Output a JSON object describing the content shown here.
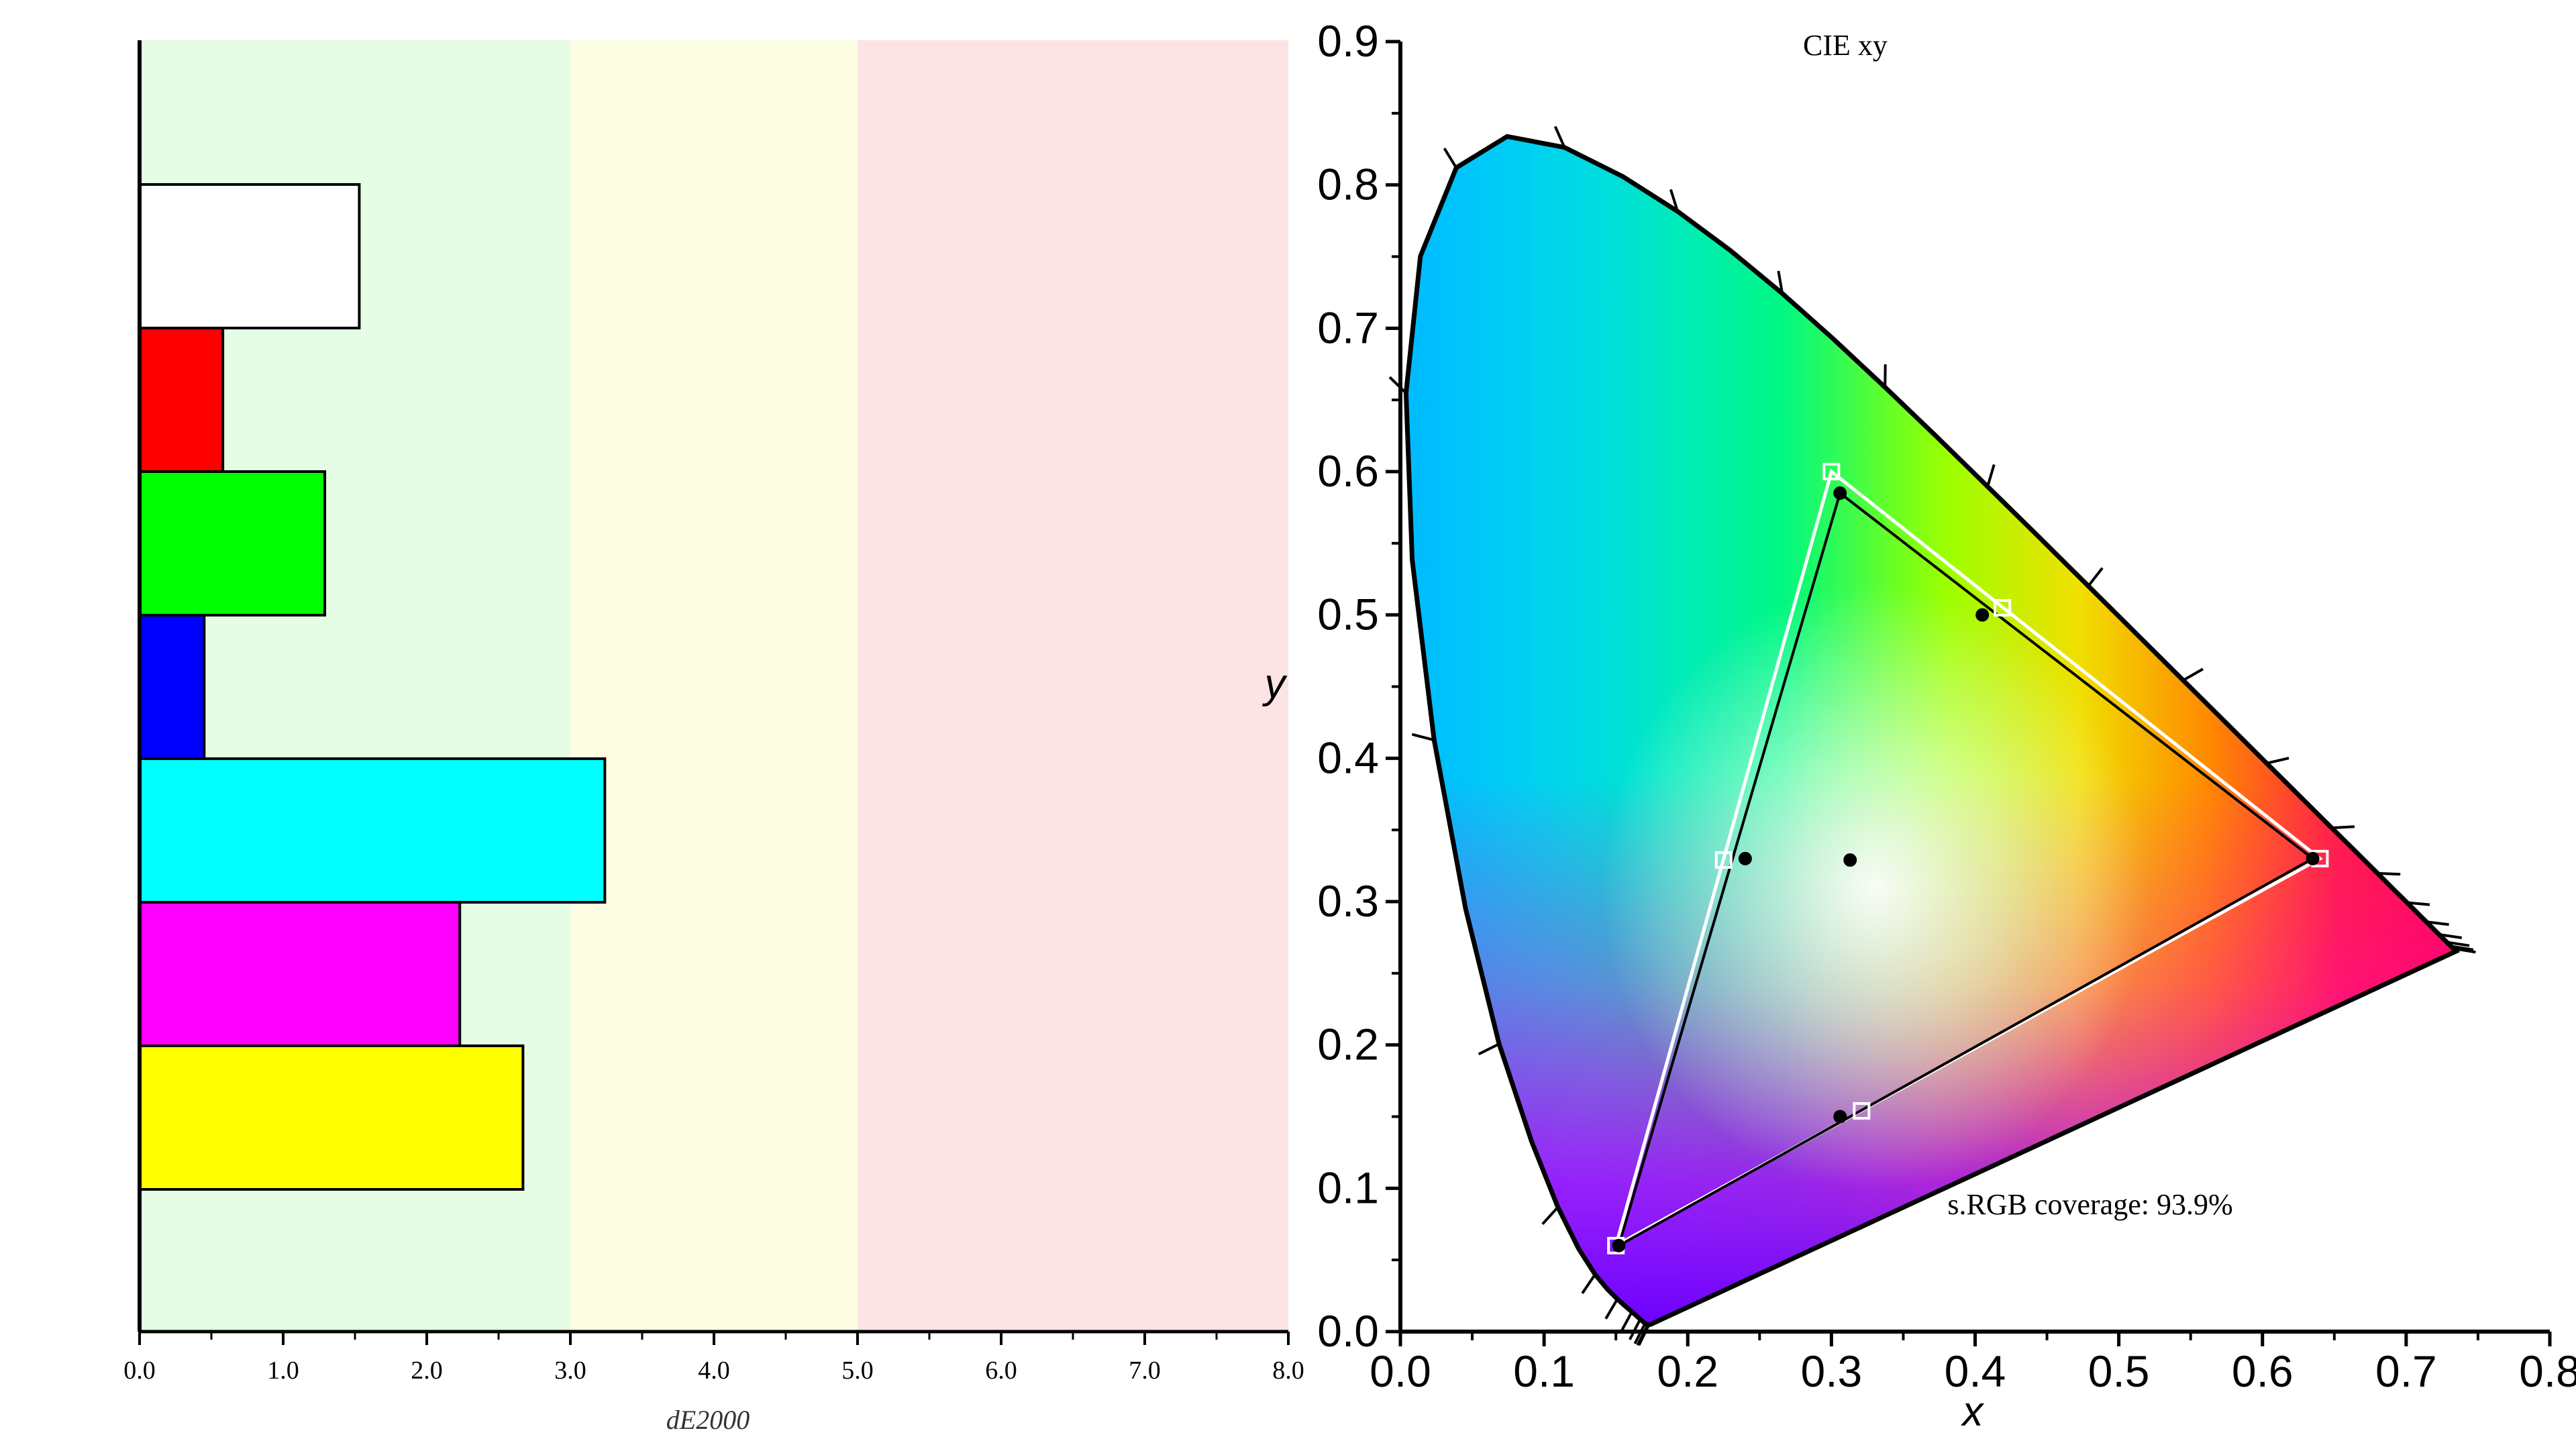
{
  "chart_data": [
    {
      "type": "bar",
      "orientation": "horizontal",
      "xlabel": "dE2000",
      "xlim": [
        0,
        8
      ],
      "xticks": [
        "0.0",
        "1.0",
        "2.0",
        "3.0",
        "4.0",
        "5.0",
        "6.0",
        "7.0",
        "8.0"
      ],
      "zones": [
        {
          "from": 0,
          "to": 3,
          "color": "#e4fde4"
        },
        {
          "from": 3,
          "to": 5,
          "color": "#fdfde4"
        },
        {
          "from": 5,
          "to": 8,
          "color": "#fde4e4"
        }
      ],
      "bars": [
        {
          "swatch": "white",
          "value": 1.53,
          "color": "#ffffff"
        },
        {
          "swatch": "red",
          "value": 0.58,
          "color": "#ff0000"
        },
        {
          "swatch": "green",
          "value": 1.29,
          "color": "#00ff00"
        },
        {
          "swatch": "blue",
          "value": 0.45,
          "color": "#0000ff"
        },
        {
          "swatch": "cyan",
          "value": 3.24,
          "color": "#00ffff"
        },
        {
          "swatch": "magenta",
          "value": 2.23,
          "color": "#ff00ff"
        },
        {
          "swatch": "yellow",
          "value": 2.67,
          "color": "#ffff00"
        }
      ]
    },
    {
      "type": "scatter",
      "title": "CIE xy",
      "xlabel": "x",
      "ylabel": "y",
      "xlim": [
        0,
        0.8
      ],
      "ylim": [
        0,
        0.9
      ],
      "xticks": [
        "0.0",
        "0.1",
        "0.2",
        "0.3",
        "0.4",
        "0.5",
        "0.6",
        "0.7",
        "0.8"
      ],
      "yticks": [
        "0.0",
        "0.1",
        "0.2",
        "0.3",
        "0.4",
        "0.5",
        "0.6",
        "0.7",
        "0.8",
        "0.9"
      ],
      "annotation": "s.RGB coverage: 93.9%",
      "spectral_locus": [
        [
          0.1741,
          0.005
        ],
        [
          0.1738,
          0.0049
        ],
        [
          0.1736,
          0.0049
        ],
        [
          0.1733,
          0.0048
        ],
        [
          0.173,
          0.0048
        ],
        [
          0.1726,
          0.0048
        ],
        [
          0.1721,
          0.0048
        ],
        [
          0.1714,
          0.0051
        ],
        [
          0.1703,
          0.0058
        ],
        [
          0.1689,
          0.0069
        ],
        [
          0.1669,
          0.0086
        ],
        [
          0.1644,
          0.0109
        ],
        [
          0.1611,
          0.0138
        ],
        [
          0.1566,
          0.0177
        ],
        [
          0.151,
          0.0227
        ],
        [
          0.144,
          0.0297
        ],
        [
          0.1355,
          0.0399
        ],
        [
          0.1241,
          0.0578
        ],
        [
          0.1096,
          0.0868
        ],
        [
          0.0913,
          0.1327
        ],
        [
          0.0687,
          0.2007
        ],
        [
          0.0454,
          0.295
        ],
        [
          0.0235,
          0.4127
        ],
        [
          0.0082,
          0.5384
        ],
        [
          0.0039,
          0.6548
        ],
        [
          0.0139,
          0.7502
        ],
        [
          0.0389,
          0.812
        ],
        [
          0.0743,
          0.8338
        ],
        [
          0.1142,
          0.8262
        ],
        [
          0.1547,
          0.8059
        ],
        [
          0.1929,
          0.7816
        ],
        [
          0.2296,
          0.7543
        ],
        [
          0.2658,
          0.7243
        ],
        [
          0.3016,
          0.6923
        ],
        [
          0.3373,
          0.6589
        ],
        [
          0.3731,
          0.6245
        ],
        [
          0.4087,
          0.5896
        ],
        [
          0.4441,
          0.5547
        ],
        [
          0.4788,
          0.5202
        ],
        [
          0.5125,
          0.4866
        ],
        [
          0.5448,
          0.4544
        ],
        [
          0.5752,
          0.4242
        ],
        [
          0.6029,
          0.3965
        ],
        [
          0.627,
          0.3725
        ],
        [
          0.6482,
          0.3514
        ],
        [
          0.6658,
          0.334
        ],
        [
          0.6801,
          0.3197
        ],
        [
          0.6915,
          0.3083
        ],
        [
          0.7006,
          0.2993
        ],
        [
          0.7079,
          0.292
        ],
        [
          0.714,
          0.2859
        ],
        [
          0.719,
          0.2809
        ],
        [
          0.723,
          0.277
        ],
        [
          0.726,
          0.274
        ],
        [
          0.7283,
          0.2717
        ],
        [
          0.73,
          0.27
        ],
        [
          0.7311,
          0.2689
        ],
        [
          0.732,
          0.268
        ],
        [
          0.7327,
          0.2673
        ],
        [
          0.7334,
          0.2666
        ],
        [
          0.734,
          0.266
        ],
        [
          0.7344,
          0.2656
        ],
        [
          0.7346,
          0.2654
        ],
        [
          0.7347,
          0.2653
        ]
      ],
      "srgb_reference": [
        [
          0.64,
          0.33
        ],
        [
          0.3,
          0.6
        ],
        [
          0.15,
          0.06
        ]
      ],
      "reference_secondaries": [
        [
          0.225,
          0.329
        ],
        [
          0.321,
          0.154
        ],
        [
          0.419,
          0.505
        ]
      ],
      "measured_primaries": [
        [
          0.635,
          0.33
        ],
        [
          0.306,
          0.585
        ],
        [
          0.152,
          0.06
        ]
      ],
      "measured_points": [
        [
          0.24,
          0.33
        ],
        [
          0.306,
          0.15
        ],
        [
          0.405,
          0.5
        ],
        [
          0.313,
          0.329
        ]
      ]
    }
  ]
}
